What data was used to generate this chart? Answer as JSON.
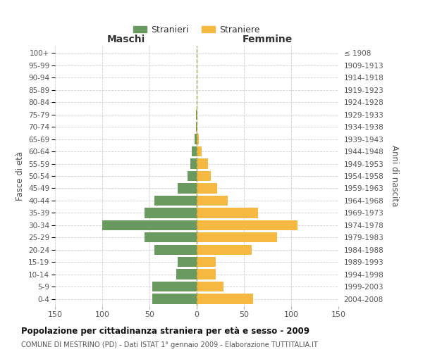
{
  "age_groups": [
    "0-4",
    "5-9",
    "10-14",
    "15-19",
    "20-24",
    "25-29",
    "30-34",
    "35-39",
    "40-44",
    "45-49",
    "50-54",
    "55-59",
    "60-64",
    "65-69",
    "70-74",
    "75-79",
    "80-84",
    "85-89",
    "90-94",
    "95-99",
    "100+"
  ],
  "birth_years": [
    "2004-2008",
    "1999-2003",
    "1994-1998",
    "1989-1993",
    "1984-1988",
    "1979-1983",
    "1974-1978",
    "1969-1973",
    "1964-1968",
    "1959-1963",
    "1954-1958",
    "1949-1953",
    "1944-1948",
    "1939-1943",
    "1934-1938",
    "1929-1933",
    "1924-1928",
    "1919-1923",
    "1914-1918",
    "1909-1913",
    "≤ 1908"
  ],
  "males": [
    47,
    47,
    22,
    20,
    45,
    55,
    100,
    55,
    45,
    20,
    10,
    7,
    5,
    2,
    1,
    1,
    0,
    0,
    0,
    0,
    0
  ],
  "females": [
    60,
    28,
    20,
    20,
    58,
    85,
    107,
    65,
    33,
    22,
    15,
    12,
    5,
    2,
    1,
    1,
    0,
    0,
    0,
    0,
    0
  ],
  "male_color": "#6a9a5f",
  "female_color": "#f5b942",
  "bg_color": "#ffffff",
  "grid_color": "#d0d0d0",
  "center_line_color": "#a0a050",
  "title": "Popolazione per cittadinanza straniera per età e sesso - 2009",
  "subtitle": "COMUNE DI MESTRINO (PD) - Dati ISTAT 1° gennaio 2009 - Elaborazione TUTTITALIA.IT",
  "left_header": "Maschi",
  "right_header": "Femmine",
  "ylabel_left": "Fasce di età",
  "ylabel_right": "Anni di nascita",
  "legend_male": "Stranieri",
  "legend_female": "Straniere",
  "xlim": 150,
  "xticks": [
    -150,
    -100,
    -50,
    0,
    50,
    100,
    150
  ],
  "xticklabels": [
    "150",
    "100",
    "50",
    "0",
    "50",
    "100",
    "150"
  ]
}
